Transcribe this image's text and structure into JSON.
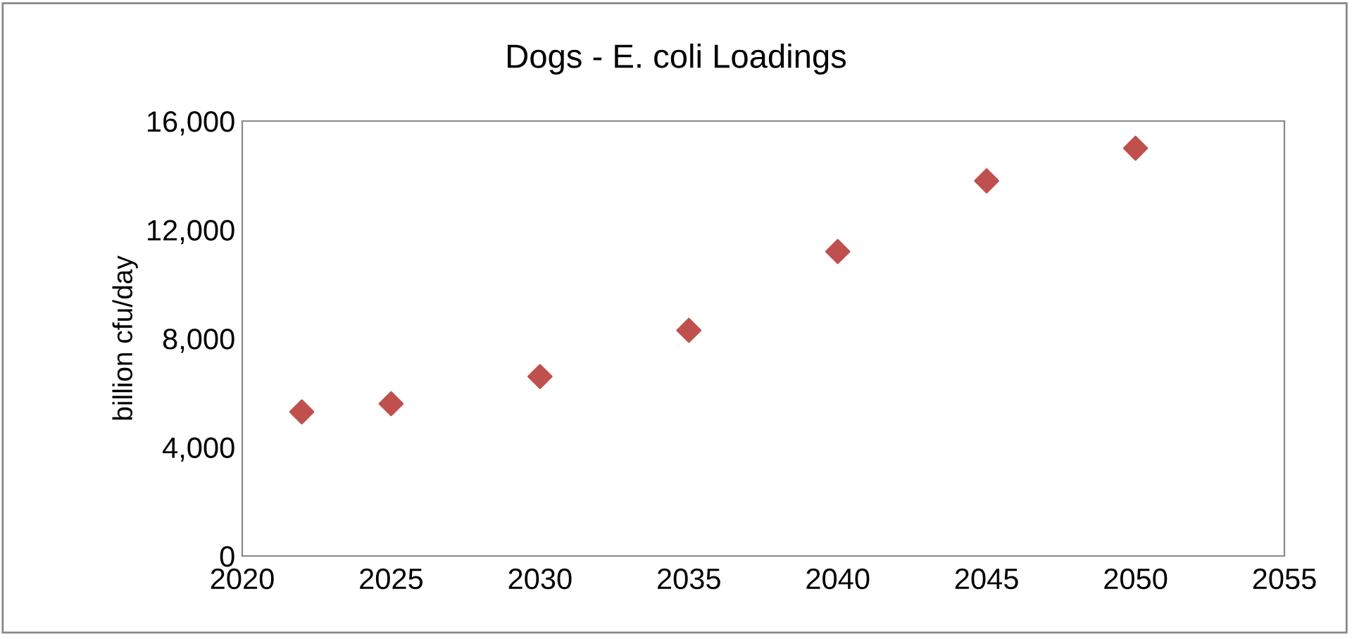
{
  "chart_data": {
    "type": "scatter",
    "title": "Dogs - E. coli Loadings",
    "ylabel": "billion cfu/day",
    "x": [
      2022,
      2025,
      2030,
      2035,
      2040,
      2045,
      2050
    ],
    "series": [
      {
        "color": "#c0504d",
        "values": [
          5300,
          5600,
          6600,
          8300,
          11200,
          13800,
          15000
        ]
      }
    ],
    "xlim": [
      2020,
      2055
    ],
    "xticks": [
      2020,
      2025,
      2030,
      2035,
      2040,
      2045,
      2050,
      2055
    ],
    "ylim": [
      0,
      16000
    ],
    "yticks": [
      {
        "value": 0,
        "label": "0"
      },
      {
        "value": 4000,
        "label": "4,000"
      },
      {
        "value": 8000,
        "label": "8,000"
      },
      {
        "value": 12000,
        "label": "12,000"
      },
      {
        "value": 16000,
        "label": "16,000"
      }
    ],
    "marker": "diamond",
    "grid": false,
    "legend": false
  }
}
